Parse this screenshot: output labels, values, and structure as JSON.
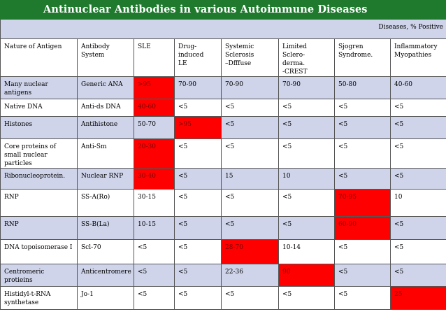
{
  "title": "Antinuclear  Antibodies in various Autoimmune Diseases",
  "diseases_header": "Diseases, % Positive",
  "columns": [
    "Nature of Antigen",
    "Antibody\nSystem",
    "SLE",
    "Drug-\ninduced\nLE",
    "Systemic\nSclerosis\n–Dfffuse",
    "Limited\nSclero-\nderma.\n-CREST",
    "Sjogren\nSyndrome.",
    "Inflammatory\nMyopathies"
  ],
  "rows": [
    {
      "antigen": "Many nuclear antigens",
      "antibody": "Generic ANA",
      "values": [
        ">95",
        "70-90",
        "70-90",
        "70-90",
        "50-80",
        "40-60"
      ],
      "highlight": [
        true,
        false,
        false,
        false,
        false,
        false
      ]
    },
    {
      "antigen": "Native DNA",
      "antibody": "Anti-ds DNA",
      "values": [
        "40-60",
        "<5",
        "<5",
        "<5",
        "<5",
        "<5"
      ],
      "highlight": [
        true,
        false,
        false,
        false,
        false,
        false
      ]
    },
    {
      "antigen": "Histones",
      "antibody": "Antihistone",
      "values": [
        "50-70",
        ">95",
        "<5",
        "<5",
        "<5",
        "<5"
      ],
      "highlight": [
        false,
        true,
        false,
        false,
        false,
        false
      ]
    },
    {
      "antigen": "Core proteins of small nuclear particles",
      "antibody": "Anti-Sm",
      "values": [
        "20-30",
        "<5",
        "<5",
        "<5",
        "<5",
        "<5"
      ],
      "highlight": [
        true,
        false,
        false,
        false,
        false,
        false
      ]
    },
    {
      "antigen": "Ribonucleoprotein.",
      "antibody": "Nuclear RNP",
      "values": [
        "30-40",
        "<5",
        "15",
        "10",
        "<5",
        "<5"
      ],
      "highlight": [
        true,
        false,
        false,
        false,
        false,
        false
      ]
    },
    {
      "antigen": "RNP",
      "antibody": "SS-A(Ro)",
      "values": [
        "30-15",
        "<5",
        "<5",
        "<5",
        "70-95",
        "10"
      ],
      "highlight": [
        false,
        false,
        false,
        false,
        true,
        false
      ]
    },
    {
      "antigen": "RNP",
      "antibody": "SS-B(La)",
      "values": [
        "10-15",
        "<5",
        "<5",
        "<5",
        "60-90",
        "<5"
      ],
      "highlight": [
        false,
        false,
        false,
        false,
        true,
        false
      ]
    },
    {
      "antigen": "DNA topoisomerase I",
      "antibody": "Scl-70",
      "values": [
        "<5",
        "<5",
        "28-70",
        "10-14",
        "<5",
        "<5"
      ],
      "highlight": [
        false,
        false,
        true,
        false,
        false,
        false
      ]
    },
    {
      "antigen": "Centromeric protieins",
      "antibody": "Anticentromere",
      "values": [
        "<5",
        "<5",
        "22-36",
        "90",
        "<5",
        "<5"
      ],
      "highlight": [
        false,
        false,
        false,
        true,
        false,
        false
      ]
    },
    {
      "antigen": "Histidyl-t-RNA synthetase",
      "antibody": "Jo-1",
      "values": [
        "<5",
        "<5",
        "<5",
        "<5",
        "<5",
        "25"
      ],
      "highlight": [
        false,
        false,
        false,
        false,
        false,
        true
      ]
    }
  ],
  "colors": {
    "title_bar": "#1f7a2e",
    "row_lavender": "#cfd4ea",
    "row_white": "#ffffff",
    "highlight": "#ff0000"
  }
}
